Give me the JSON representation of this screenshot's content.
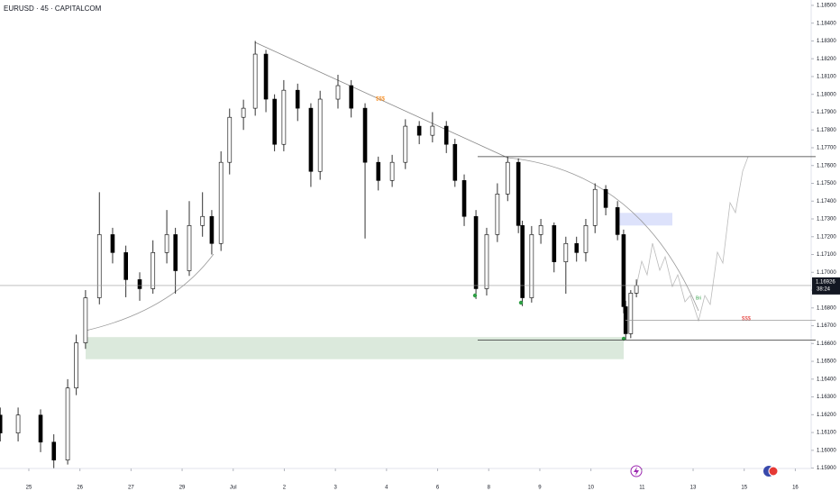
{
  "chart_data": {
    "type": "candlestick",
    "title": "EURUSD · 45 · CAPITALCOM",
    "x": [
      -0.56,
      -0.21,
      0.23,
      0.49,
      0.76,
      0.93,
      1.11,
      1.38,
      1.64,
      1.9,
      2.17,
      2.43,
      2.7,
      2.87,
      3.14,
      3.4,
      3.58,
      3.76,
      3.93,
      4.2,
      4.43,
      4.64,
      4.81,
      4.99,
      5.26,
      5.52,
      5.7,
      6.05,
      6.31,
      6.58,
      6.84,
      7.11,
      7.37,
      7.64,
      7.9,
      8.17,
      8.34,
      8.52,
      8.75,
      8.96,
      9.17,
      9.37,
      9.58,
      9.66,
      9.84,
      10.02,
      10.28,
      10.51,
      10.72,
      10.9,
      11.08,
      11.29,
      11.52,
      11.64,
      11.68,
      11.78,
      11.89
    ],
    "open": [
      1.16198,
      1.16097,
      1.16198,
      1.16046,
      1.15945,
      1.1635,
      1.16604,
      1.16857,
      1.17212,
      1.17111,
      1.16959,
      1.16908,
      1.17111,
      1.17212,
      1.17009,
      1.17263,
      1.17314,
      1.17162,
      1.17618,
      1.17871,
      1.17922,
      1.18226,
      1.17973,
      1.17719,
      1.18023,
      1.17922,
      1.17567,
      1.17973,
      1.18049,
      1.17922,
      1.17618,
      1.17516,
      1.17618,
      1.17821,
      1.1777,
      1.17821,
      1.17719,
      1.17516,
      1.17314,
      1.16908,
      1.17212,
      1.1744,
      1.17618,
      1.17263,
      1.16857,
      1.17212,
      1.17263,
      1.17059,
      1.17162,
      1.17111,
      1.17263,
      1.17466,
      1.17364,
      1.17212,
      1.16807,
      1.16655,
      1.16883
    ],
    "high": [
      1.1624,
      1.1624,
      1.1623,
      1.1609,
      1.164,
      1.1665,
      1.169,
      1.1745,
      1.1725,
      1.1715,
      1.17,
      1.1718,
      1.1735,
      1.1725,
      1.174,
      1.1745,
      1.1735,
      1.1768,
      1.1792,
      1.1797,
      1.183,
      1.1825,
      1.18,
      1.1808,
      1.1806,
      1.1795,
      1.1802,
      1.1811,
      1.1808,
      1.1795,
      1.1765,
      1.1766,
      1.1786,
      1.1785,
      1.179,
      1.1785,
      1.1775,
      1.1755,
      1.1735,
      1.1725,
      1.175,
      1.1765,
      1.1764,
      1.1729,
      1.1726,
      1.173,
      1.1728,
      1.172,
      1.172,
      1.173,
      1.175,
      1.1749,
      1.174,
      1.1724,
      1.1684,
      1.169,
      1.1696
    ],
    "low": [
      1.1605,
      1.1605,
      1.1599,
      1.159,
      1.1592,
      1.1631,
      1.1657,
      1.1682,
      1.1705,
      1.1686,
      1.1684,
      1.1688,
      1.1705,
      1.1688,
      1.1698,
      1.172,
      1.171,
      1.1712,
      1.1755,
      1.178,
      1.1788,
      1.179,
      1.1768,
      1.1768,
      1.1785,
      1.1748,
      1.1752,
      1.1792,
      1.1787,
      1.1719,
      1.1746,
      1.1748,
      1.1758,
      1.1772,
      1.1773,
      1.1767,
      1.1748,
      1.1726,
      1.1685,
      1.1687,
      1.1717,
      1.174,
      1.1722,
      1.1681,
      1.1683,
      1.1716,
      1.17,
      1.1688,
      1.1706,
      1.1706,
      1.1722,
      1.1732,
      1.1718,
      1.1677,
      1.1662,
      1.1663,
      1.1686
    ],
    "close": [
      1.16097,
      1.16198,
      1.16046,
      1.15945,
      1.1635,
      1.16604,
      1.16857,
      1.17212,
      1.17111,
      1.16959,
      1.16908,
      1.17111,
      1.17212,
      1.17009,
      1.17263,
      1.17314,
      1.17162,
      1.17618,
      1.17871,
      1.17922,
      1.18226,
      1.17973,
      1.17719,
      1.18023,
      1.17922,
      1.17567,
      1.17973,
      1.18049,
      1.17922,
      1.17618,
      1.17516,
      1.17618,
      1.17821,
      1.1777,
      1.17821,
      1.17719,
      1.17516,
      1.17314,
      1.16908,
      1.17212,
      1.1744,
      1.17618,
      1.17263,
      1.16857,
      1.17212,
      1.17263,
      1.17059,
      1.17162,
      1.17111,
      1.17263,
      1.17466,
      1.17364,
      1.17212,
      1.16807,
      1.16655,
      1.16883,
      1.16926
    ],
    "up_color": "#ffffff",
    "down_color": "#000000",
    "wick_color": "#000000",
    "xlim": [
      -0.564,
      15.31
    ],
    "xticks": [
      {
        "value": 0,
        "label": "25"
      },
      {
        "value": 1,
        "label": "26"
      },
      {
        "value": 2,
        "label": "27"
      },
      {
        "value": 3,
        "label": "29"
      },
      {
        "value": 4,
        "label": "Jul"
      },
      {
        "value": 5,
        "label": "2"
      },
      {
        "value": 6,
        "label": "3"
      },
      {
        "value": 7,
        "label": "4"
      },
      {
        "value": 8,
        "label": "6"
      },
      {
        "value": 9,
        "label": "8"
      },
      {
        "value": 10,
        "label": "9"
      },
      {
        "value": 11,
        "label": "10"
      },
      {
        "value": 12,
        "label": "11"
      },
      {
        "value": 13,
        "label": "13"
      },
      {
        "value": 14,
        "label": "15"
      },
      {
        "value": 15,
        "label": "16"
      }
    ],
    "ylim": [
      1.15898,
      1.1853
    ],
    "yticks": [
      {
        "value": 1.159,
        "label": "1.15900"
      },
      {
        "value": 1.16,
        "label": "1.16000"
      },
      {
        "value": 1.161,
        "label": "1.16100"
      },
      {
        "value": 1.162,
        "label": "1.16200"
      },
      {
        "value": 1.163,
        "label": "1.16300"
      },
      {
        "value": 1.164,
        "label": "1.16400"
      },
      {
        "value": 1.165,
        "label": "1.16500"
      },
      {
        "value": 1.166,
        "label": "1.16600"
      },
      {
        "value": 1.167,
        "label": "1.16700"
      },
      {
        "value": 1.168,
        "label": "1.16800"
      },
      {
        "value": 1.169,
        "label": "1.16900"
      },
      {
        "value": 1.17,
        "label": "1.17000"
      },
      {
        "value": 1.171,
        "label": "1.17100"
      },
      {
        "value": 1.172,
        "label": "1.17200"
      },
      {
        "value": 1.173,
        "label": "1.17300"
      },
      {
        "value": 1.174,
        "label": "1.17400"
      },
      {
        "value": 1.175,
        "label": "1.17500"
      },
      {
        "value": 1.176,
        "label": "1.17600"
      },
      {
        "value": 1.177,
        "label": "1.17700"
      },
      {
        "value": 1.178,
        "label": "1.17800"
      },
      {
        "value": 1.179,
        "label": "1.17900"
      },
      {
        "value": 1.18,
        "label": "1.18000"
      },
      {
        "value": 1.181,
        "label": "1.18100"
      },
      {
        "value": 1.182,
        "label": "1.18200"
      },
      {
        "value": 1.183,
        "label": "1.18300"
      },
      {
        "value": 1.184,
        "label": "1.18400"
      },
      {
        "value": 1.185,
        "label": "1.18500"
      }
    ],
    "grid": false,
    "last_price": {
      "value": 1.16926,
      "label": "1.16926"
    },
    "countdown": "38:24",
    "levels": [
      1.1765,
      1.1662,
      1.1673
    ],
    "zones": [
      {
        "low": 1.16512,
        "high": 1.16636,
        "color": "#dbe9dc"
      },
      {
        "low": 1.17263,
        "high": 1.17334,
        "color": "#dde2fb"
      }
    ],
    "annotations": [
      "$$$",
      "$$$",
      "Bri"
    ]
  }
}
